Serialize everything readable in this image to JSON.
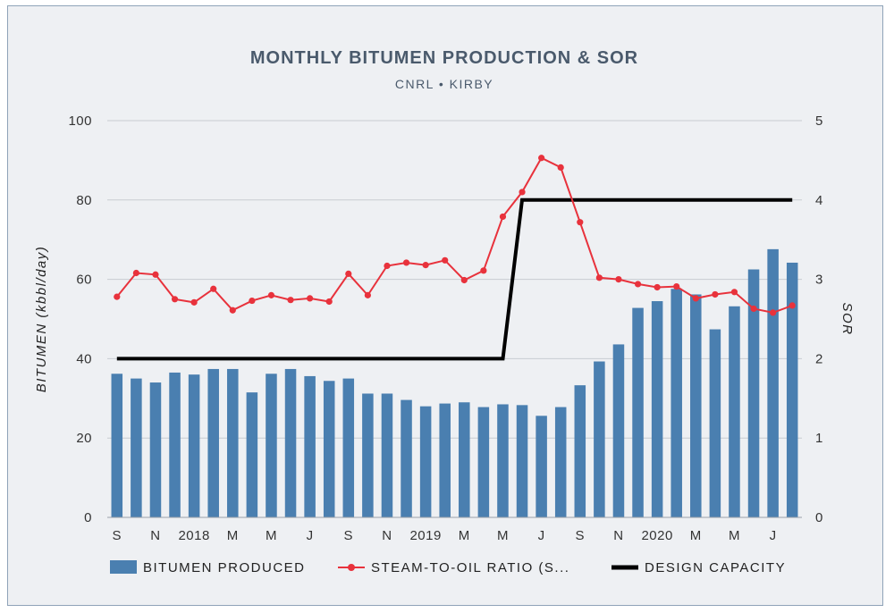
{
  "chart_data": {
    "type": "bar+line",
    "title": "MONTHLY BITUMEN PRODUCTION & SOR",
    "subtitle": "CNRL • KIRBY",
    "ylabel_left": "BITUMEN (kbbl/day)",
    "ylabel_right": "SOR",
    "ylim_left": [
      0,
      100
    ],
    "ylim_right": [
      0,
      5
    ],
    "yticks_left": [
      "0",
      "20",
      "40",
      "60",
      "80",
      "100"
    ],
    "yticks_right": [
      "0",
      "1",
      "2",
      "3",
      "4",
      "5"
    ],
    "x_tick_labels": [
      "S",
      "N",
      "2018",
      "M",
      "M",
      "J",
      "S",
      "N",
      "2019",
      "M",
      "M",
      "J",
      "S",
      "N",
      "2020",
      "M",
      "M",
      "J"
    ],
    "months": [
      "2017-09",
      "2017-10",
      "2017-11",
      "2017-12",
      "2018-01",
      "2018-02",
      "2018-03",
      "2018-04",
      "2018-05",
      "2018-06",
      "2018-07",
      "2018-08",
      "2018-09",
      "2018-10",
      "2018-11",
      "2018-12",
      "2019-01",
      "2019-02",
      "2019-03",
      "2019-04",
      "2019-05",
      "2019-06",
      "2019-07",
      "2019-08",
      "2019-09",
      "2019-10",
      "2019-11",
      "2019-12",
      "2020-01",
      "2020-02",
      "2020-03",
      "2020-04",
      "2020-05",
      "2020-06",
      "2020-07",
      "2020-08"
    ],
    "grid": true,
    "legend_position": "bottom",
    "series": [
      {
        "name": "BITUMEN PRODUCED",
        "type": "bar",
        "axis": "left",
        "color": "#4a7fb0",
        "values": [
          36.2,
          35.0,
          34.0,
          36.5,
          36.0,
          37.4,
          37.4,
          31.5,
          36.2,
          37.4,
          35.6,
          34.4,
          35.0,
          31.2,
          31.2,
          29.6,
          28.0,
          28.7,
          29.0,
          27.8,
          28.5,
          28.3,
          25.6,
          27.8,
          33.3,
          39.3,
          43.6,
          52.8,
          54.5,
          57.6,
          56.2,
          47.4,
          53.2,
          62.5,
          67.6,
          64.2
        ]
      },
      {
        "name": "STEAM-TO-OIL RATIO (S...",
        "type": "line",
        "axis": "right",
        "color": "#e8323c",
        "values": [
          2.78,
          3.08,
          3.06,
          2.75,
          2.71,
          2.88,
          2.61,
          2.73,
          2.8,
          2.74,
          2.76,
          2.72,
          3.07,
          2.8,
          3.17,
          3.21,
          3.18,
          3.24,
          2.99,
          3.11,
          3.79,
          4.1,
          4.53,
          4.41,
          3.72,
          3.02,
          3.0,
          2.94,
          2.9,
          2.91,
          2.76,
          2.81,
          2.84,
          2.63,
          2.58,
          2.67
        ]
      },
      {
        "name": "DESIGN CAPACITY",
        "type": "line",
        "axis": "left",
        "color": "#000000",
        "values": [
          40,
          40,
          40,
          40,
          40,
          40,
          40,
          40,
          40,
          40,
          40,
          40,
          40,
          40,
          40,
          40,
          40,
          40,
          40,
          40,
          40,
          80,
          80,
          80,
          80,
          80,
          80,
          80,
          80,
          80,
          80,
          80,
          80,
          80,
          80,
          80
        ]
      }
    ]
  }
}
